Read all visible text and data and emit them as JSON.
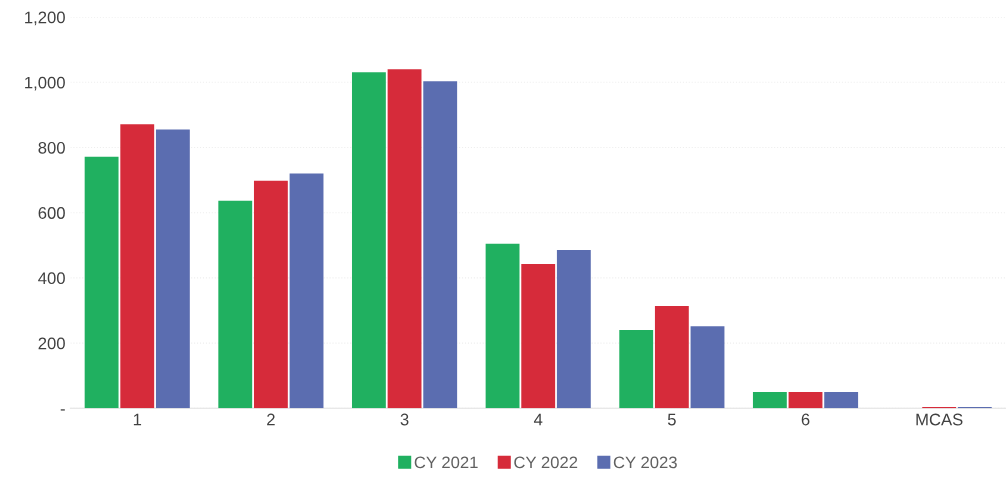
{
  "chart_data": {
    "type": "bar",
    "categories": [
      "1",
      "2",
      "3",
      "4",
      "5",
      "6",
      "MCAS"
    ],
    "series": [
      {
        "name": "CY 2021",
        "color": "#20b060",
        "values": [
          772,
          637,
          1031,
          505,
          240,
          50,
          0
        ]
      },
      {
        "name": "CY 2022",
        "color": "#d62b3a",
        "values": [
          871,
          698,
          1040,
          443,
          314,
          50,
          4
        ]
      },
      {
        "name": "CY 2023",
        "color": "#5b6db0",
        "values": [
          855,
          720,
          1003,
          486,
          252,
          50,
          4
        ]
      }
    ],
    "ylim": [
      0,
      1200
    ],
    "yticks": [
      {
        "value": 0,
        "label": "-"
      },
      {
        "value": 200,
        "label": "200"
      },
      {
        "value": 400,
        "label": "400"
      },
      {
        "value": 600,
        "label": "600"
      },
      {
        "value": 800,
        "label": "800"
      },
      {
        "value": 1000,
        "label": "1,000"
      },
      {
        "value": 1200,
        "label": "1,200"
      }
    ],
    "grid": "y",
    "legend": "bottom"
  }
}
